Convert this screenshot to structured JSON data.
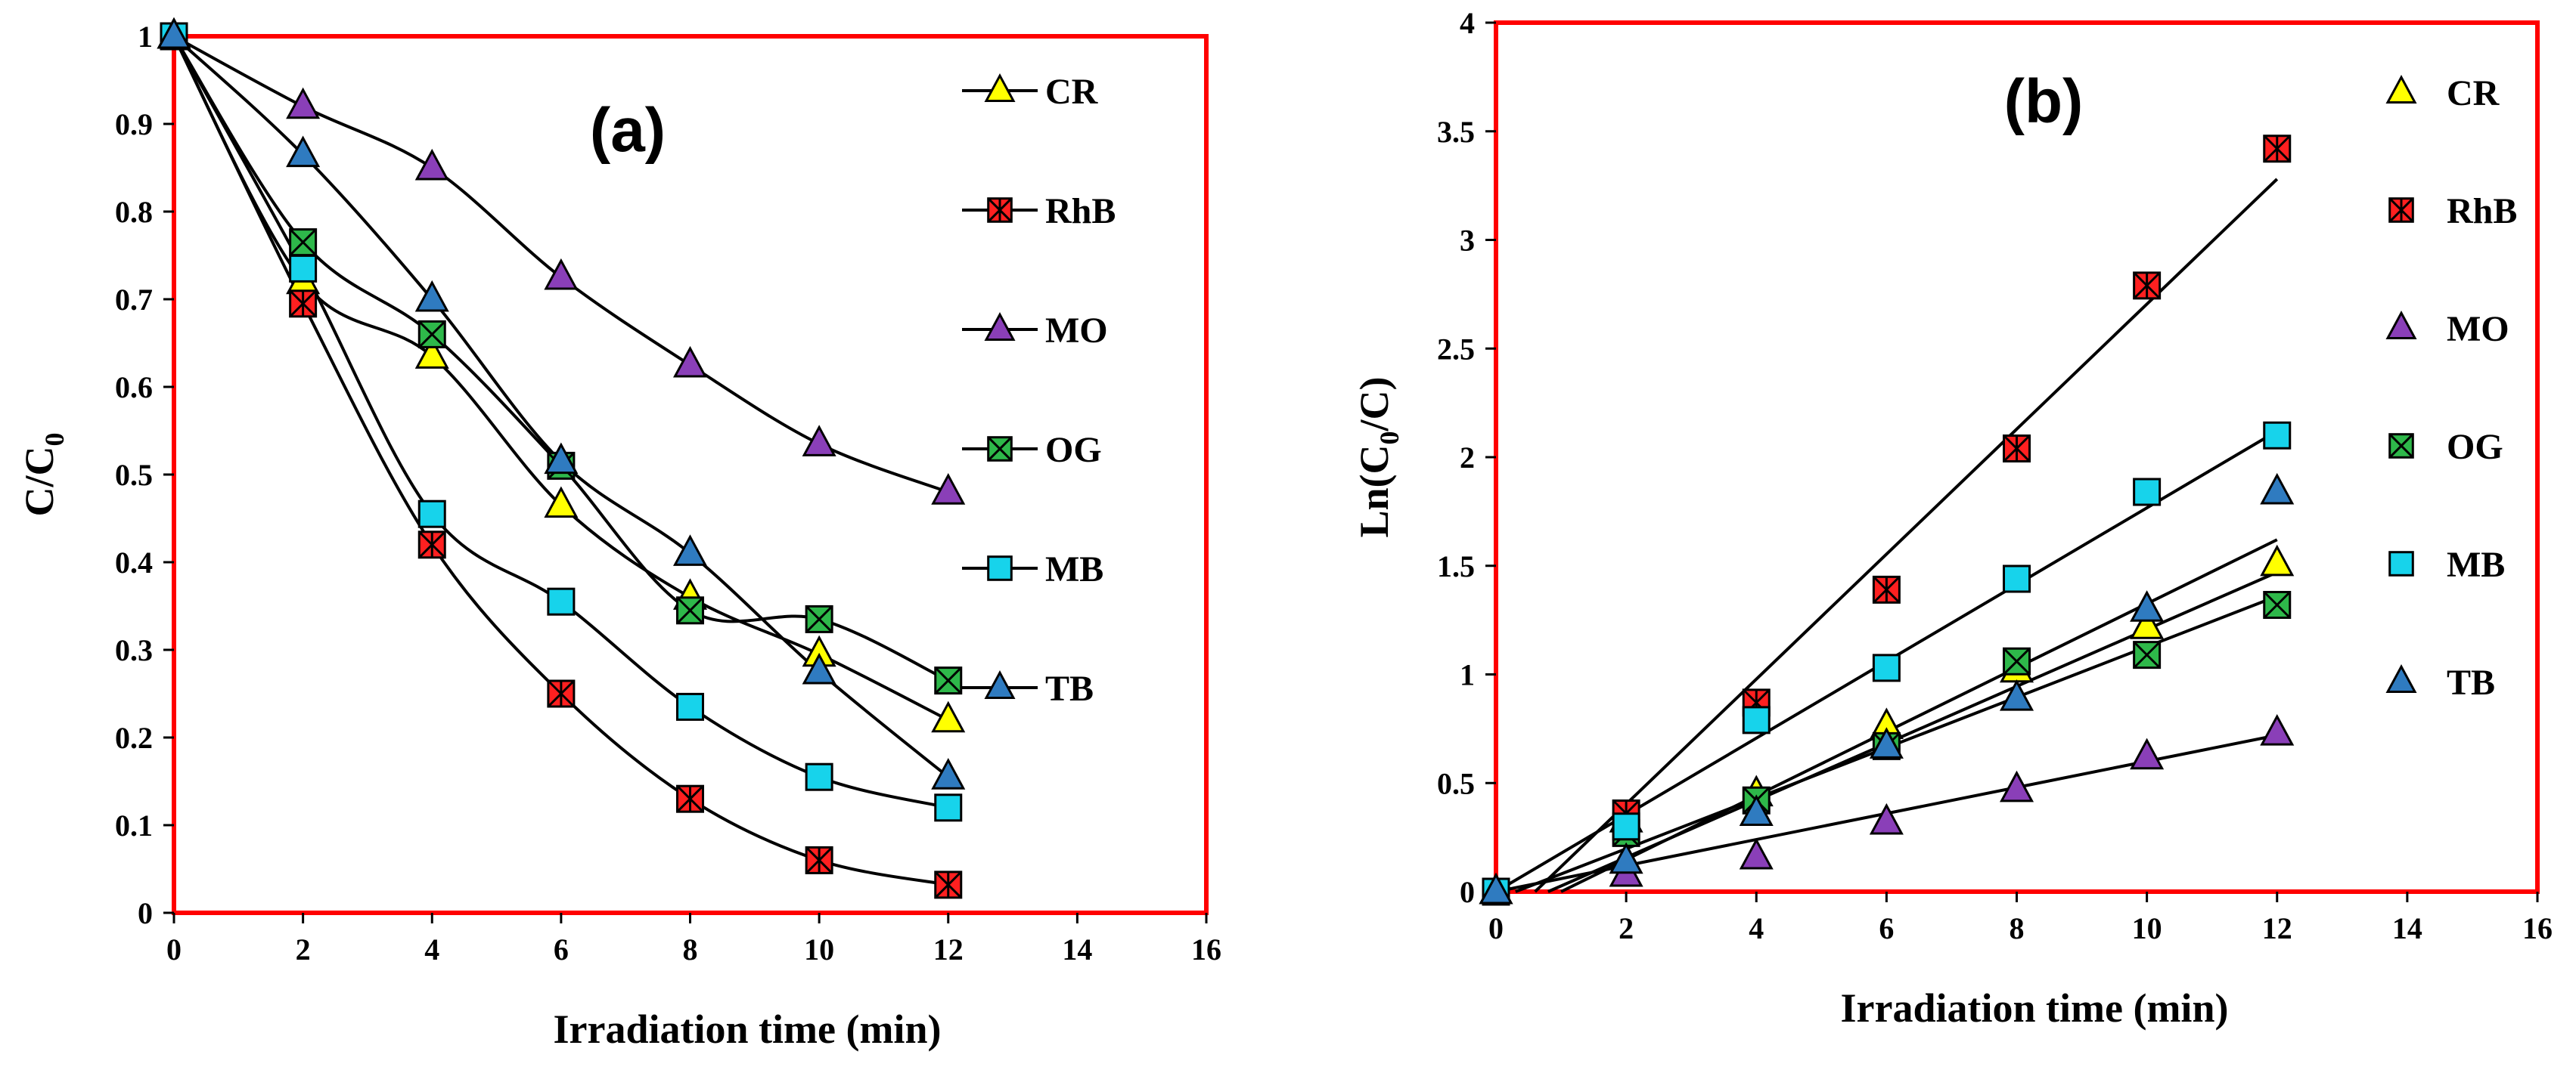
{
  "legend_labels": [
    "CR",
    "RhB",
    "MO",
    "OG",
    "MB",
    "TB"
  ],
  "series_colors": {
    "CR": "#ffff00",
    "RhB": "#ff2020",
    "MO": "#8a3fb8",
    "OG": "#2eb84a",
    "MB": "#17d3eb",
    "TB": "#2f7bc0"
  },
  "frame_color": "#ff0000",
  "chart_data": [
    {
      "type": "line",
      "panel_label": "(a)",
      "xlabel": "Irradiation time (min)",
      "ylabel_main": "C/C",
      "ylabel_sub": "0",
      "xlim": [
        0,
        16
      ],
      "ylim": [
        0,
        1
      ],
      "xticks": [
        "0",
        "2",
        "4",
        "6",
        "8",
        "10",
        "12",
        "14",
        "16"
      ],
      "yticks": [
        "0",
        "0.1",
        "0.2",
        "0.3",
        "0.4",
        "0.5",
        "0.6",
        "0.7",
        "0.8",
        "0.9",
        "1"
      ],
      "x": [
        0,
        2,
        4,
        6,
        8,
        10,
        12
      ],
      "series": [
        {
          "name": "CR",
          "values": [
            1,
            0.72,
            0.635,
            0.465,
            0.36,
            0.295,
            0.22
          ]
        },
        {
          "name": "RhB",
          "values": [
            1,
            0.695,
            0.42,
            0.25,
            0.13,
            0.06,
            0.032
          ]
        },
        {
          "name": "MO",
          "values": [
            1,
            0.92,
            0.85,
            0.725,
            0.625,
            0.535,
            0.48
          ]
        },
        {
          "name": "OG",
          "values": [
            1,
            0.765,
            0.66,
            0.51,
            0.345,
            0.335,
            0.265
          ]
        },
        {
          "name": "MB",
          "values": [
            1,
            0.735,
            0.455,
            0.355,
            0.235,
            0.155,
            0.12
          ]
        },
        {
          "name": "TB",
          "values": [
            1,
            0.865,
            0.7,
            0.515,
            0.41,
            0.275,
            0.155
          ]
        }
      ]
    },
    {
      "type": "scatter",
      "panel_label": "(b)",
      "xlabel": "Irradiation time (min)",
      "ylabel_main": "Ln(C",
      "ylabel_sub": "0",
      "ylabel_end": "/C)",
      "xlim": [
        0,
        16
      ],
      "ylim": [
        0,
        4
      ],
      "xticks": [
        "0",
        "2",
        "4",
        "6",
        "8",
        "10",
        "12",
        "14",
        "16"
      ],
      "yticks": [
        "0",
        "0.5",
        "1",
        "1.5",
        "2",
        "2.5",
        "3",
        "3.5",
        "4"
      ],
      "x": [
        0,
        2,
        4,
        6,
        8,
        10,
        12
      ],
      "series": [
        {
          "name": "CR",
          "values": [
            0,
            0.33,
            0.45,
            0.76,
            1.02,
            1.22,
            1.51
          ],
          "fit": [
            [
              0.8,
              0
            ],
            [
              12,
              1.47
            ]
          ]
        },
        {
          "name": "RhB",
          "values": [
            0,
            0.36,
            0.87,
            1.39,
            2.04,
            2.79,
            3.42
          ],
          "fit": [
            [
              0.6,
              0
            ],
            [
              12,
              3.28
            ]
          ]
        },
        {
          "name": "MO",
          "values": [
            0,
            0.08,
            0.16,
            0.32,
            0.47,
            0.62,
            0.73
          ],
          "fit": [
            [
              0,
              0
            ],
            [
              12,
              0.72
            ]
          ]
        },
        {
          "name": "OG",
          "values": [
            0,
            0.27,
            0.42,
            0.67,
            1.06,
            1.09,
            1.32
          ],
          "fit": [
            [
              0.3,
              0
            ],
            [
              12,
              1.36
            ]
          ]
        },
        {
          "name": "MB",
          "values": [
            0,
            0.3,
            0.79,
            1.03,
            1.44,
            1.84,
            2.1
          ],
          "fit": [
            [
              0,
              0
            ],
            [
              12,
              2.12
            ]
          ]
        },
        {
          "name": "TB",
          "values": [
            0,
            0.14,
            0.36,
            0.67,
            0.89,
            1.3,
            1.84
          ],
          "fit": [
            [
              1.0,
              0
            ],
            [
              12,
              1.62
            ]
          ]
        }
      ]
    }
  ]
}
